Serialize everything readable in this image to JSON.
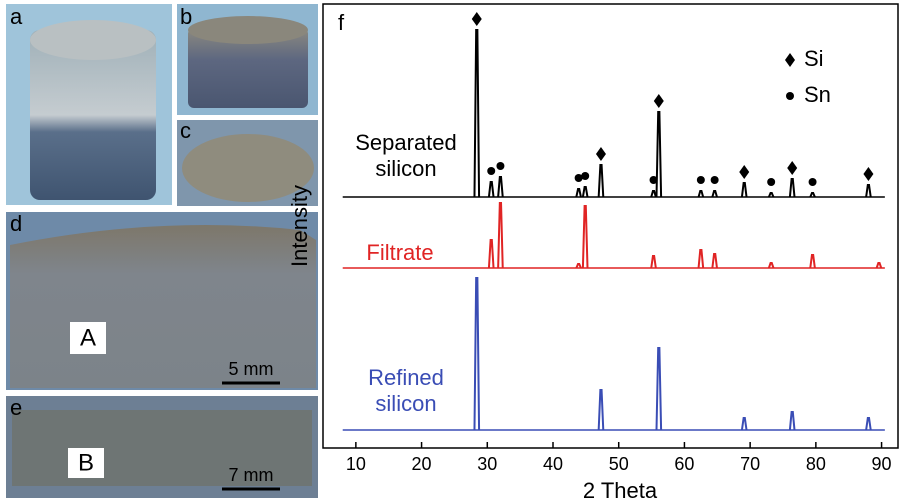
{
  "chart_data": {
    "type": "xrd",
    "panel_label": "f",
    "x_label": "2 Theta",
    "y_label": "Intensity",
    "xlim": [
      5,
      92.5
    ],
    "xticks": [
      10,
      20,
      30,
      40,
      50,
      60,
      70,
      80,
      90
    ],
    "legend": [
      {
        "name": "Si",
        "marker": "diamond"
      },
      {
        "name": "Sn",
        "marker": "circle"
      }
    ],
    "series": [
      {
        "name": "Separated silicon",
        "color": "#000000",
        "x": [
          28.4,
          30.6,
          32.0,
          43.9,
          44.9,
          47.3,
          55.3,
          56.1,
          62.5,
          64.6,
          69.1,
          73.2,
          76.4,
          79.5,
          88.0
        ],
        "values": [
          167,
          15,
          20,
          8,
          10,
          32,
          6,
          85,
          6,
          6,
          14,
          4,
          18,
          4,
          12
        ],
        "peak_phase": [
          "Si",
          "Sn",
          "Sn",
          "Sn",
          "Sn",
          "Si",
          "Sn",
          "Si",
          "Sn",
          "Sn",
          "Si",
          "Sn",
          "Si",
          "Sn",
          "Si"
        ]
      },
      {
        "name": "Filtrate",
        "color": "#e02424",
        "x": [
          30.6,
          32.0,
          43.9,
          44.9,
          55.3,
          62.5,
          64.6,
          73.2,
          79.5,
          89.6
        ],
        "values": [
          28,
          65,
          4,
          62,
          12,
          18,
          14,
          5,
          13,
          5
        ]
      },
      {
        "name": "Refined silicon",
        "color": "#3a4db5",
        "x": [
          28.4,
          47.3,
          56.1,
          69.1,
          76.4,
          88.0
        ],
        "values": [
          152,
          40,
          82,
          12,
          18,
          12
        ]
      }
    ]
  },
  "photos": {
    "a": "a",
    "b": "b",
    "c": "c",
    "d": "d",
    "e": "e",
    "sample_d": "A",
    "sample_e": "B",
    "scale_d": "5 mm",
    "scale_e": "7 mm"
  }
}
